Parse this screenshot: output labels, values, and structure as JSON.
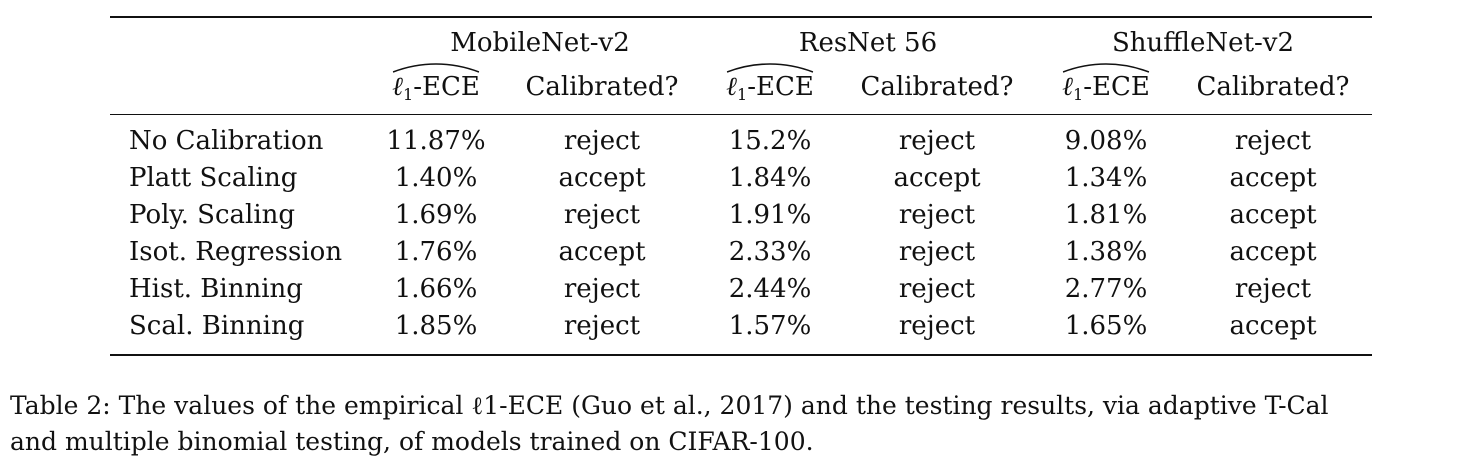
{
  "table": {
    "models": [
      "MobileNet-v2",
      "ResNet 56",
      "ShuffleNet-v2"
    ],
    "subheaders": {
      "ece_prefix": "ℓ",
      "ece_sub": "1",
      "ece_suffix": "-ECE",
      "calibrated": "Calibrated?"
    },
    "rows": [
      {
        "method": "No Calibration",
        "cells": [
          "11.87%",
          "reject",
          "15.2%",
          "reject",
          "9.08%",
          "reject"
        ]
      },
      {
        "method": "Platt Scaling",
        "cells": [
          "1.40%",
          "accept",
          "1.84%",
          "accept",
          "1.34%",
          "accept"
        ]
      },
      {
        "method": "Poly. Scaling",
        "cells": [
          "1.69%",
          "reject",
          "1.91%",
          "reject",
          "1.81%",
          "accept"
        ]
      },
      {
        "method": "Isot. Regression",
        "cells": [
          "1.76%",
          "accept",
          "2.33%",
          "reject",
          "1.38%",
          "accept"
        ]
      },
      {
        "method": "Hist. Binning",
        "cells": [
          "1.66%",
          "reject",
          "2.44%",
          "reject",
          "2.77%",
          "reject"
        ]
      },
      {
        "method": "Scal. Binning",
        "cells": [
          "1.85%",
          "reject",
          "1.57%",
          "reject",
          "1.65%",
          "accept"
        ]
      }
    ]
  },
  "caption": {
    "line1": "Table 2: The values of the empirical ℓ1-ECE (Guo et al., 2017) and the testing results, via adaptive T-Cal",
    "line2": "and multiple binomial testing, of models trained on CIFAR-100."
  }
}
